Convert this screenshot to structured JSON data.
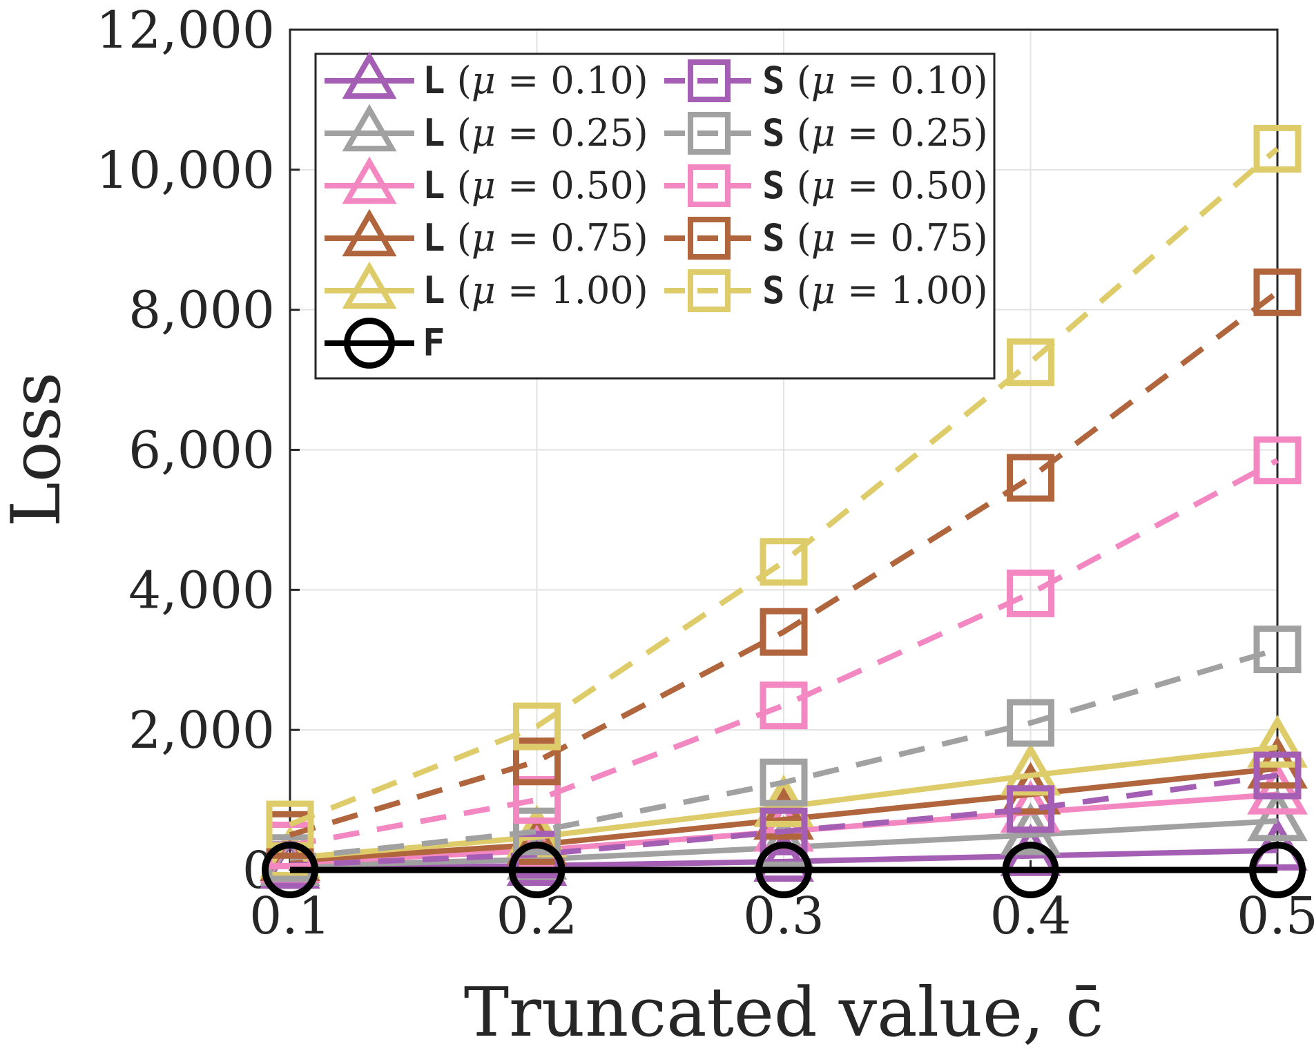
{
  "chart_data": {
    "type": "line",
    "xlabel": "Truncated value, c̄",
    "ylabel": "Loss",
    "x": [
      0.1,
      0.2,
      0.3,
      0.4,
      0.5
    ],
    "xtick_labels": [
      "0.1",
      "0.2",
      "0.3",
      "0.4",
      "0.5"
    ],
    "xlim": [
      0.1,
      0.5
    ],
    "ylim": [
      0,
      12000
    ],
    "ytick_values": [
      0,
      2000,
      4000,
      6000,
      8000,
      10000,
      12000
    ],
    "ytick_labels": [
      "0",
      "2,000",
      "4,000",
      "6,000",
      "8,000",
      "10,000",
      "12,000"
    ],
    "grid": true,
    "legend_position": "top-left",
    "legend_columns": 2,
    "series": [
      {
        "name": "L (μ = 0.10)",
        "code": "L",
        "mu": "0.10",
        "marker": "triangle",
        "line": "solid",
        "color": "#A45EB4",
        "values": [
          20,
          60,
          120,
          200,
          280
        ]
      },
      {
        "name": "L (μ = 0.25)",
        "code": "L",
        "mu": "0.25",
        "marker": "triangle",
        "line": "solid",
        "color": "#A1A1A1",
        "values": [
          60,
          150,
          320,
          500,
          700
        ]
      },
      {
        "name": "L (μ = 0.50)",
        "code": "L",
        "mu": "0.50",
        "marker": "triangle",
        "line": "solid",
        "color": "#F287C2",
        "values": [
          100,
          280,
          550,
          820,
          1080
        ]
      },
      {
        "name": "L (μ = 0.75)",
        "code": "L",
        "mu": "0.75",
        "marker": "triangle",
        "line": "solid",
        "color": "#B0653C",
        "values": [
          130,
          360,
          720,
          1080,
          1450
        ]
      },
      {
        "name": "L (μ = 1.00)",
        "code": "L",
        "mu": "1.00",
        "marker": "triangle",
        "line": "solid",
        "color": "#DECC6A",
        "values": [
          170,
          470,
          900,
          1350,
          1750
        ]
      },
      {
        "name": "S (μ = 0.10)",
        "code": "S",
        "mu": "0.10",
        "marker": "square",
        "line": "dashed",
        "color": "#A45EB4",
        "values": [
          70,
          220,
          550,
          870,
          1350
        ]
      },
      {
        "name": "S (μ = 0.25)",
        "code": "S",
        "mu": "0.25",
        "marker": "square",
        "line": "dashed",
        "color": "#A1A1A1",
        "values": [
          170,
          550,
          1250,
          2100,
          3150
        ]
      },
      {
        "name": "S (μ = 0.50)",
        "code": "S",
        "mu": "0.50",
        "marker": "square",
        "line": "dashed",
        "color": "#F287C2",
        "values": [
          350,
          1000,
          2350,
          3950,
          5850
        ]
      },
      {
        "name": "S (μ = 0.75)",
        "code": "S",
        "mu": "0.75",
        "marker": "square",
        "line": "dashed",
        "color": "#B0653C",
        "values": [
          500,
          1550,
          3400,
          5600,
          8250
        ]
      },
      {
        "name": "S (μ = 1.00)",
        "code": "S",
        "mu": "1.00",
        "marker": "square",
        "line": "dashed",
        "color": "#DECC6A",
        "values": [
          650,
          2050,
          4400,
          7250,
          10300
        ]
      },
      {
        "name": "F",
        "code": "F",
        "mu": "",
        "marker": "circle",
        "line": "solid",
        "color": "#000000",
        "values": [
          0,
          0,
          0,
          0,
          0
        ]
      }
    ]
  }
}
